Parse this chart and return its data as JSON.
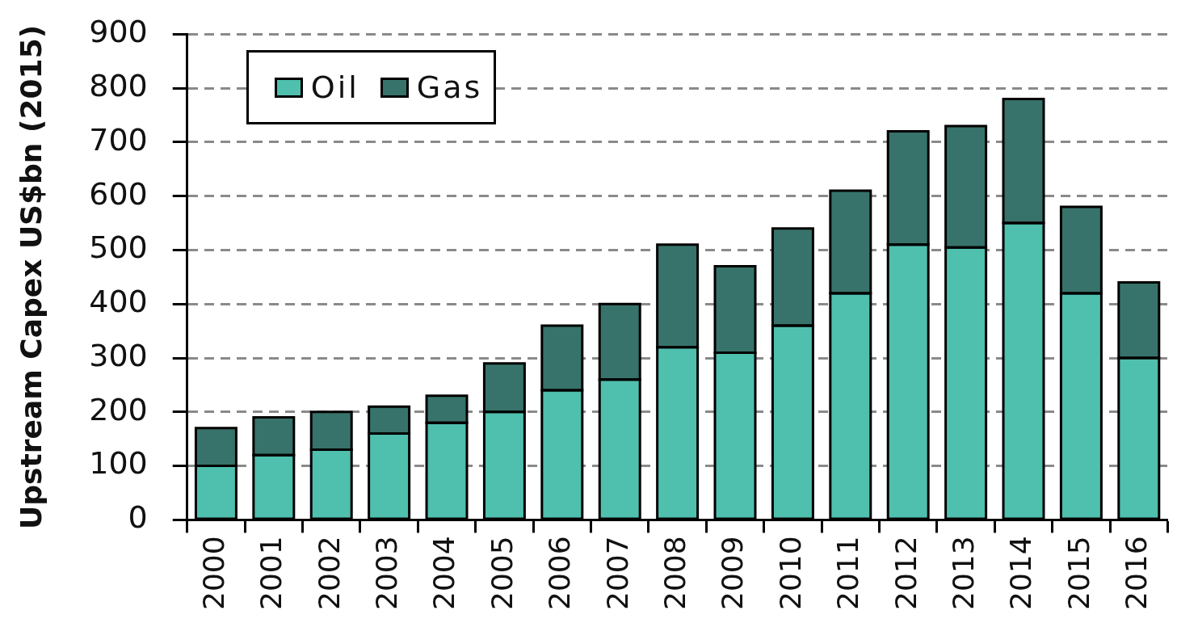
{
  "chart_data": {
    "type": "bar",
    "ylabel": "Upstream Capex US$bn (2015)",
    "categories": [
      "2000",
      "2001",
      "2002",
      "2003",
      "2004",
      "2005",
      "2006",
      "2007",
      "2008",
      "2009",
      "2010",
      "2011",
      "2012",
      "2013",
      "2014",
      "2015",
      "2016"
    ],
    "series": [
      {
        "name": "Oil",
        "color": "#4fbfae",
        "values": [
          100,
          120,
          130,
          160,
          180,
          200,
          240,
          260,
          320,
          310,
          360,
          420,
          510,
          505,
          550,
          420,
          300
        ]
      },
      {
        "name": "Gas",
        "color": "#37736a",
        "values": [
          70,
          70,
          70,
          50,
          50,
          90,
          120,
          140,
          190,
          160,
          180,
          190,
          210,
          225,
          230,
          160,
          140
        ]
      }
    ],
    "stacked": true,
    "ylim": [
      0,
      900
    ],
    "yticks": [
      0,
      100,
      200,
      300,
      400,
      500,
      600,
      700,
      800,
      900
    ],
    "grid": "y",
    "legend": "top left"
  }
}
